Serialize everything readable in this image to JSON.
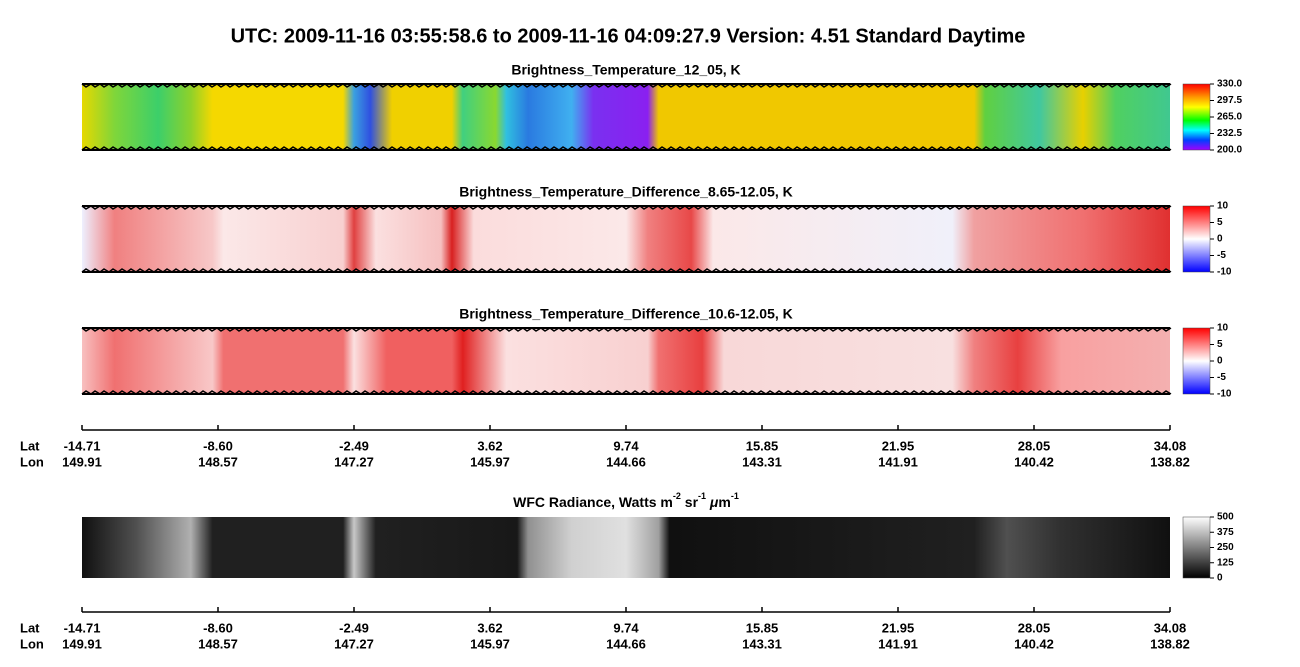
{
  "title": "UTC:  2009-11-16   03:55:58.6  to  2009-11-16   04:09:27.9    Version: 4.51  Standard Daytime",
  "panels": [
    {
      "title": "Brightness_Temperature_12_05, K",
      "colorbar_ticks": [
        "330.0",
        "297.5",
        "265.0",
        "232.5",
        "200.0"
      ]
    },
    {
      "title": "Brightness_Temperature_Difference_8.65-12.05, K",
      "colorbar_ticks": [
        "10",
        "5",
        "0",
        "-5",
        "-10"
      ]
    },
    {
      "title": "Brightness_Temperature_Difference_10.6-12.05, K",
      "colorbar_ticks": [
        "10",
        "5",
        "0",
        "-5",
        "-10"
      ]
    }
  ],
  "axis": {
    "lat_label": "Lat",
    "lon_label": "Lon",
    "lat": [
      "-14.71",
      "-8.60",
      "-2.49",
      "3.62",
      "9.74",
      "15.85",
      "21.95",
      "28.05",
      "34.08"
    ],
    "lon": [
      "149.91",
      "148.57",
      "147.27",
      "145.97",
      "144.66",
      "143.31",
      "141.91",
      "140.42",
      "138.82"
    ]
  },
  "radiance": {
    "title_parts": [
      "WFC Radiance, Watts m",
      "-2",
      " sr",
      "-1",
      " ",
      "μ",
      "m",
      "-1"
    ],
    "colorbar_ticks": [
      "500",
      "375",
      "250",
      "125",
      "0"
    ]
  }
}
